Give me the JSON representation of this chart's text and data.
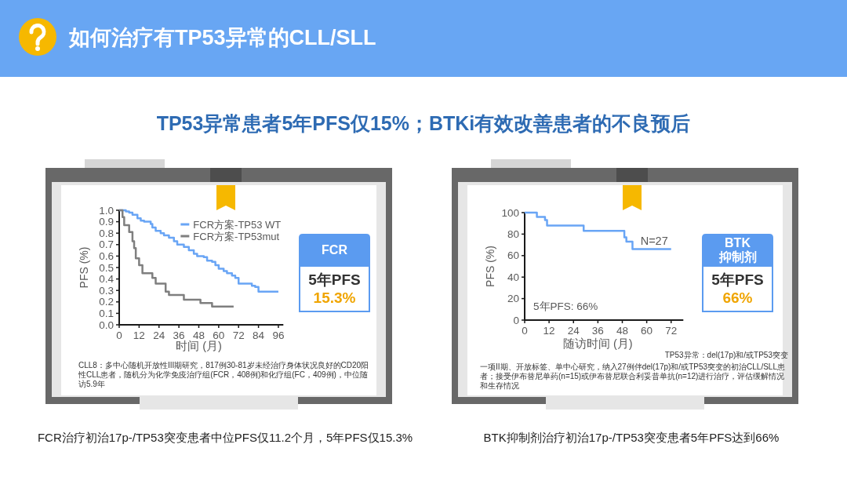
{
  "chart_data": [
    {
      "type": "step",
      "title": "如何治疗有TP53异常的CLL/SLL",
      "subtitle": "TP53异常患者5年PFS仅15%；BTKi有效改善患者的不良预后",
      "xlabel": "时间 (月)",
      "ylabel": "PFS (%)",
      "xlim": [
        0,
        99
      ],
      "ylim": [
        0,
        1
      ],
      "xticks": [
        0,
        12,
        24,
        36,
        48,
        60,
        72,
        84,
        96
      ],
      "yticks": [
        {
          "value": 0,
          "label": "0.0"
        },
        0.1,
        0.2,
        0.3,
        0.4,
        0.5,
        0.6,
        0.7,
        0.8,
        0.9,
        {
          "value": 1,
          "label": "1.0"
        }
      ],
      "legend": "top right",
      "series": [
        {
          "name": "FCR方案-TP53 WT",
          "color": "#69a5f5",
          "x": [
            0,
            4,
            6,
            8,
            11,
            13,
            15,
            19,
            20,
            22,
            25,
            27,
            30,
            33,
            35,
            39,
            42,
            45,
            47,
            51,
            53,
            56,
            58,
            60,
            63,
            65,
            68,
            70,
            72,
            77,
            80,
            82,
            84,
            96
          ],
          "values": [
            1.0,
            0.99,
            0.98,
            0.96,
            0.93,
            0.91,
            0.9,
            0.88,
            0.85,
            0.82,
            0.8,
            0.78,
            0.76,
            0.73,
            0.7,
            0.68,
            0.65,
            0.62,
            0.6,
            0.59,
            0.56,
            0.55,
            0.52,
            0.49,
            0.47,
            0.45,
            0.43,
            0.41,
            0.36,
            0.36,
            0.34,
            0.33,
            0.29,
            0.29
          ]
        },
        {
          "name": "FCR方案-TP53mut",
          "color": "#7f7f7f",
          "x": [
            0,
            2,
            3,
            6,
            8,
            9,
            10,
            12,
            14,
            20,
            22,
            28,
            30,
            39,
            49,
            56,
            69
          ],
          "values": [
            1.0,
            0.94,
            0.87,
            0.81,
            0.73,
            0.67,
            0.58,
            0.52,
            0.45,
            0.41,
            0.36,
            0.29,
            0.26,
            0.22,
            0.19,
            0.16,
            0.16
          ]
        }
      ],
      "annotations": [
        "FCR",
        "5年PFS",
        "15.3%",
        "CLL8：多中心随机开放性III期研究，817例30-81岁未经治疗身体状况良好的CD20阳性CLL患者，随机分为化学免疫治疗组(FCR，408例)和化疗组(FC，409例)，中位随访5.9年",
        "FCR治疗初治17p-/TP53突变患者中位PFS仅11.2个月，5年PFS仅15.3%"
      ]
    },
    {
      "type": "step",
      "xlabel": "随访时间 (月)",
      "ylabel": "PFS (%)",
      "xlim": [
        0,
        78
      ],
      "ylim": [
        0,
        100
      ],
      "xticks": [
        0,
        12,
        24,
        36,
        48,
        60,
        72
      ],
      "yticks": [
        0,
        20,
        40,
        60,
        80,
        100
      ],
      "series": [
        {
          "color": "#69a5f5",
          "x": [
            0,
            6,
            10,
            11,
            29,
            49,
            50,
            53,
            72
          ],
          "values": [
            100,
            96,
            93,
            88,
            83,
            77,
            73,
            66,
            66
          ]
        }
      ],
      "annotations": [
        "BTK\n抑制剂",
        "5年PFS",
        "66%",
        "5年PFS: 66%",
        "N=27",
        "TP53异常：del(17p)和/或TP53突变",
        "一项II期、开放标签、单中心研究，纳入27例伴del(17p)和/或TP53突变的初治CLL/SLL患者；接受伊布替尼单药(n=15)或伊布替尼联合利妥昔单抗(n=12)进行治疗，评估缓解情况和生存情况",
        "BTK抑制剂治疗初治17p-/TP53突变患者5年PFS达到66%"
      ]
    }
  ]
}
